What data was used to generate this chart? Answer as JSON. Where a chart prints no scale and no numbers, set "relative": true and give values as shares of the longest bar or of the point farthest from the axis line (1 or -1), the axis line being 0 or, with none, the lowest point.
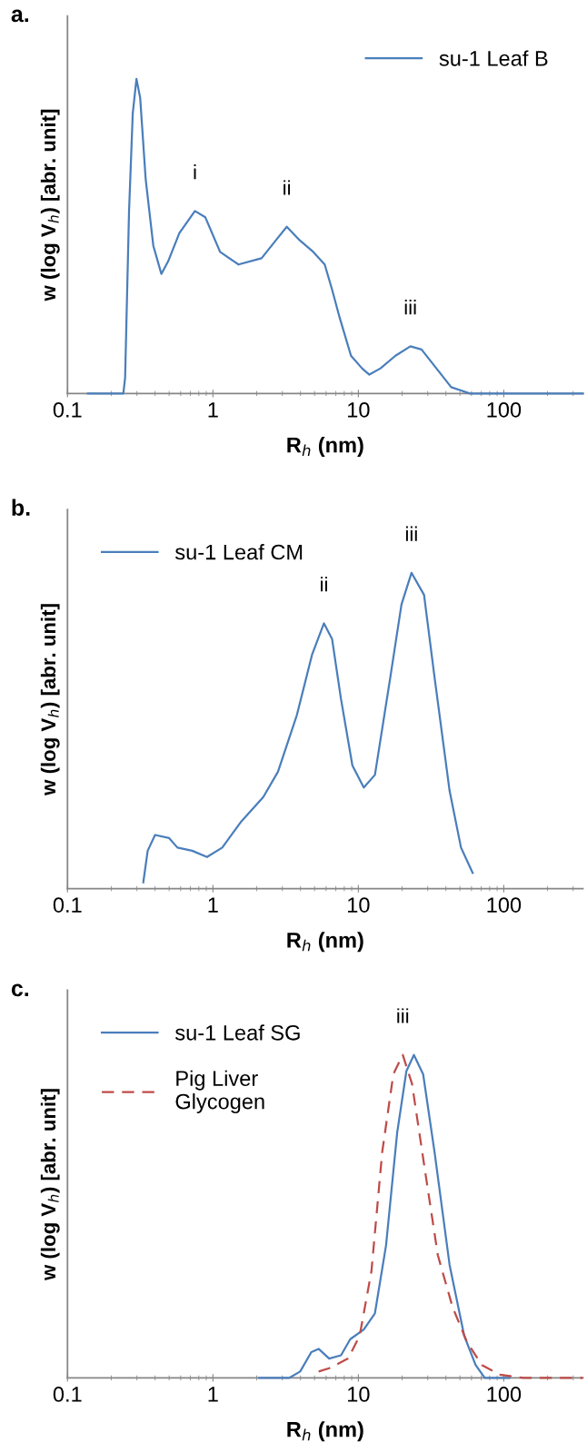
{
  "chart_data": [
    {
      "type": "line",
      "title": "a.",
      "xlabel": "R$_{h}$ (nm)",
      "ylabel": "w (log V$_{h}$) [abr. unit]",
      "log": "x",
      "relative": true,
      "xlim": [
        0.1,
        350
      ],
      "xticks": [
        0.1,
        1,
        10,
        100
      ],
      "legend": "top right",
      "grid": false,
      "series": [
        {
          "name": "su-1 Leaf B",
          "color": "#4a7ebb",
          "x": [
            0.138,
            0.242,
            0.249,
            0.265,
            0.281,
            0.298,
            0.316,
            0.345,
            0.389,
            0.442,
            0.492,
            0.588,
            0.752,
            0.887,
            1.12,
            1.5,
            2.16,
            2.74,
            3.22,
            3.89,
            4.9,
            5.87,
            6.6,
            7.45,
            8.9,
            10.6,
            11.9,
            14.2,
            18.0,
            22.8,
            27.2,
            34.4,
            43.5,
            58.5,
            74.3,
            350
          ],
          "values": [
            0,
            0,
            0.05,
            0.58,
            0.89,
            1,
            0.94,
            0.68,
            0.47,
            0.38,
            0.42,
            0.51,
            0.58,
            0.56,
            0.45,
            0.41,
            0.43,
            0.49,
            0.53,
            0.49,
            0.45,
            0.41,
            0.33,
            0.24,
            0.12,
            0.08,
            0.06,
            0.08,
            0.12,
            0.15,
            0.14,
            0.08,
            0.02,
            0,
            0,
            0
          ]
        }
      ],
      "annotations": [
        {
          "text": "i",
          "x": 0.752,
          "y": 0.58
        },
        {
          "text": "ii",
          "x": 3.22,
          "y": 0.53
        },
        {
          "text": "iii",
          "x": 22.8,
          "y": 0.15
        }
      ]
    },
    {
      "type": "line",
      "title": "b.",
      "xlabel": "R$_{h}$ (nm)",
      "ylabel": "w (log V$_{h}$) [abr. unit]",
      "log": "x",
      "relative": true,
      "xlim": [
        0.1,
        350
      ],
      "xticks": [
        0.1,
        1,
        10,
        100
      ],
      "legend": "top left",
      "grid": false,
      "series": [
        {
          "name": "su-1 Leaf CM",
          "color": "#4a7ebb",
          "x": [
            0.332,
            0.356,
            0.4,
            0.5,
            0.57,
            0.72,
            0.91,
            1.16,
            1.55,
            2.22,
            2.8,
            3.78,
            4.8,
            5.8,
            6.6,
            7.6,
            9.1,
            10.9,
            13.0,
            16.6,
            19.8,
            23.2,
            28.3,
            33.4,
            42.4,
            50.8,
            61.1
          ],
          "values": [
            0.02,
            0.12,
            0.17,
            0.16,
            0.13,
            0.12,
            0.1,
            0.13,
            0.21,
            0.29,
            0.37,
            0.55,
            0.74,
            0.84,
            0.79,
            0.6,
            0.39,
            0.32,
            0.36,
            0.67,
            0.9,
            1,
            0.93,
            0.67,
            0.31,
            0.13,
            0.05
          ]
        }
      ],
      "annotations": [
        {
          "text": "ii",
          "x": 5.8,
          "y": 0.84
        },
        {
          "text": "iii",
          "x": 23.2,
          "y": 1
        }
      ]
    },
    {
      "type": "line",
      "title": "c.",
      "xlabel": "R$_{h}$ (nm)",
      "ylabel": "w (log V$_{h}$) [abr. unit]",
      "log": "x",
      "relative": true,
      "xlim": [
        0.1,
        350
      ],
      "xticks": [
        0.1,
        1,
        10,
        100
      ],
      "legend": "top left",
      "grid": false,
      "series": [
        {
          "name": "su-1 Leaf SG",
          "color": "#4a7ebb",
          "line_style": "solid",
          "x": [
            2.08,
            3.34,
            3.98,
            4.75,
            5.33,
            6.3,
            7.6,
            8.8,
            10.9,
            13.0,
            15.5,
            18.5,
            21.4,
            24.1,
            27.9,
            33.4,
            42.4,
            53.5,
            64,
            74,
            109
          ],
          "values": [
            0,
            0,
            0.02,
            0.08,
            0.09,
            0.06,
            0.07,
            0.12,
            0.15,
            0.2,
            0.41,
            0.76,
            0.95,
            1,
            0.94,
            0.7,
            0.35,
            0.13,
            0.04,
            0,
            0
          ]
        },
        {
          "name": "Pig Liver\nGlycogen",
          "color": "#be4b48",
          "line_style": "dashed",
          "x": [
            5.33,
            6.3,
            8.5,
            10.2,
            12.3,
            14.6,
            17.4,
            20.2,
            23.4,
            27.9,
            35.2,
            44.4,
            56.0,
            70.7,
            94.3,
            137,
            350
          ],
          "values": [
            0.02,
            0.03,
            0.06,
            0.13,
            0.33,
            0.7,
            0.94,
            1,
            0.91,
            0.68,
            0.38,
            0.22,
            0.11,
            0.04,
            0.01,
            0,
            0
          ]
        }
      ],
      "annotations": [
        {
          "text": "iii",
          "x": 20.2,
          "y": 1
        }
      ]
    }
  ]
}
